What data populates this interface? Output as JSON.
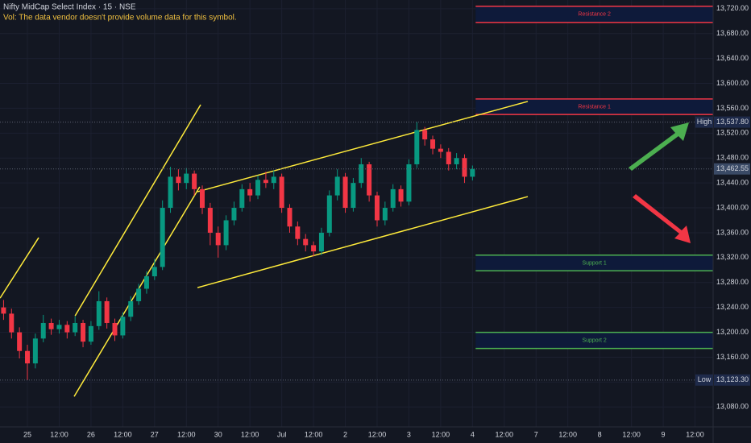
{
  "chart_data": {
    "type": "candlestick",
    "title": "Nifty MidCap Select Index · 15 · NSE",
    "subtitle": "Vol: The data vendor doesn't provide volume data for this symbol.",
    "up_color": "#089981",
    "down_color": "#f23645",
    "grid": true,
    "xlim": [
      -0.862,
      21.57
    ],
    "ylim": [
      13048,
      13734
    ],
    "xticks": [
      {
        "value": 0,
        "label": "25"
      },
      {
        "value": 1,
        "label": "12:00"
      },
      {
        "value": 2,
        "label": "26"
      },
      {
        "value": 3,
        "label": "12:00"
      },
      {
        "value": 4,
        "label": "27"
      },
      {
        "value": 5,
        "label": "12:00"
      },
      {
        "value": 6,
        "label": "30"
      },
      {
        "value": 7,
        "label": "12:00"
      },
      {
        "value": 8,
        "label": "Jul"
      },
      {
        "value": 9,
        "label": "12:00"
      },
      {
        "value": 10,
        "label": "2"
      },
      {
        "value": 11,
        "label": "12:00"
      },
      {
        "value": 12,
        "label": "3"
      },
      {
        "value": 13,
        "label": "12:00"
      },
      {
        "value": 14,
        "label": "4"
      },
      {
        "value": 15,
        "label": "12:00"
      },
      {
        "value": 16,
        "label": "7"
      },
      {
        "value": 17,
        "label": "12:00"
      },
      {
        "value": 18,
        "label": "8"
      },
      {
        "value": 19,
        "label": "12:00"
      },
      {
        "value": 20,
        "label": "9"
      },
      {
        "value": 21,
        "label": "12:00"
      }
    ],
    "yticks": [
      {
        "value": 13080,
        "label": "13,080.00"
      },
      {
        "value": 13120,
        "label": "13,120.00"
      },
      {
        "value": 13160,
        "label": "13,160.00"
      },
      {
        "value": 13200,
        "label": "13,200.00"
      },
      {
        "value": 13240,
        "label": "13,240.00"
      },
      {
        "value": 13280,
        "label": "13,280.00"
      },
      {
        "value": 13320,
        "label": "13,320.00"
      },
      {
        "value": 13360,
        "label": "13,360.00"
      },
      {
        "value": 13400,
        "label": "13,400.00"
      },
      {
        "value": 13440,
        "label": "13,440.00"
      },
      {
        "value": 13480,
        "label": "13,480.00"
      },
      {
        "value": 13520,
        "label": "13,520.00"
      },
      {
        "value": 13560,
        "label": "13,560.00"
      },
      {
        "value": 13600,
        "label": "13,600.00"
      },
      {
        "value": 13640,
        "label": "13,640.00"
      },
      {
        "value": 13680,
        "label": "13,680.00"
      },
      {
        "value": 13720,
        "label": "13,720.00"
      }
    ],
    "x": [
      -0.75,
      -0.5,
      -0.25,
      0,
      0.25,
      0.5,
      0.75,
      1,
      1.25,
      1.5,
      1.75,
      2,
      2.25,
      2.5,
      2.75,
      3,
      3.25,
      3.5,
      3.75,
      4,
      4.25,
      4.5,
      4.75,
      5,
      5.25,
      5.5,
      5.75,
      6,
      6.25,
      6.5,
      6.75,
      7,
      7.25,
      7.5,
      7.75,
      8,
      8.25,
      8.5,
      8.75,
      9,
      9.25,
      9.5,
      9.75,
      10,
      10.25,
      10.5,
      10.75,
      11,
      11.25,
      11.5,
      11.75,
      12,
      12.25,
      12.5,
      12.75,
      13,
      13.25,
      13.5,
      13.75,
      14
    ],
    "open": [
      13240,
      13230,
      13200,
      13170,
      13150,
      13190,
      13215,
      13205,
      13212,
      13200,
      13215,
      13185,
      13210,
      13250,
      13215,
      13195,
      13225,
      13250,
      13270,
      13290,
      13305,
      13400,
      13450,
      13440,
      13455,
      13430,
      13400,
      13360,
      13340,
      13380,
      13400,
      13430,
      13420,
      13445,
      13440,
      13450,
      13400,
      13370,
      13350,
      13340,
      13330,
      13360,
      13420,
      13450,
      13400,
      13440,
      13470,
      13420,
      13380,
      13400,
      13430,
      13410,
      13470,
      13525,
      13510,
      13495,
      13490,
      13470,
      13480,
      13450
    ],
    "high": [
      13252,
      13238,
      13208,
      13180,
      13198,
      13228,
      13222,
      13220,
      13218,
      13226,
      13220,
      13218,
      13266,
      13256,
      13222,
      13232,
      13258,
      13278,
      13298,
      13318,
      13412,
      13466,
      13462,
      13464,
      13460,
      13436,
      13408,
      13370,
      13388,
      13410,
      13438,
      13440,
      13452,
      13458,
      13460,
      13455,
      13406,
      13378,
      13358,
      13346,
      13368,
      13428,
      13462,
      13456,
      13448,
      13480,
      13474,
      13426,
      13410,
      13438,
      13436,
      13478,
      13537.8,
      13530,
      13516,
      13502,
      13496,
      13488,
      13486,
      13468
    ],
    "low": [
      13220,
      13190,
      13158,
      13123.3,
      13142,
      13184,
      13196,
      13198,
      13190,
      13194,
      13176,
      13180,
      13204,
      13206,
      13186,
      13190,
      13218,
      13244,
      13262,
      13284,
      13300,
      13392,
      13428,
      13430,
      13420,
      13390,
      13340,
      13320,
      13332,
      13372,
      13394,
      13410,
      13414,
      13432,
      13430,
      13392,
      13360,
      13340,
      13330,
      13322,
      13324,
      13354,
      13412,
      13392,
      13394,
      13432,
      13410,
      13370,
      13372,
      13394,
      13402,
      13404,
      13464,
      13500,
      13486,
      13480,
      13460,
      13462,
      13440,
      13444
    ],
    "close": [
      13230,
      13200,
      13170,
      13150,
      13190,
      13215,
      13205,
      13212,
      13200,
      13215,
      13185,
      13210,
      13250,
      13215,
      13195,
      13225,
      13250,
      13270,
      13290,
      13305,
      13400,
      13450,
      13440,
      13455,
      13430,
      13400,
      13360,
      13340,
      13380,
      13400,
      13430,
      13420,
      13445,
      13440,
      13450,
      13400,
      13370,
      13350,
      13340,
      13330,
      13360,
      13420,
      13450,
      13400,
      13440,
      13470,
      13420,
      13380,
      13400,
      13430,
      13410,
      13470,
      13525,
      13510,
      13495,
      13490,
      13470,
      13480,
      13450,
      13462.55
    ],
    "zones": [
      {
        "label": "Resistance 2",
        "top": 13724,
        "bottom": 13698,
        "x0": 14.1,
        "color": "#f23645"
      },
      {
        "label": "Resistance 1",
        "top": 13575,
        "bottom": 13550,
        "x0": 14.1,
        "color": "#f23645"
      },
      {
        "label": "Support 1",
        "top": 13324,
        "bottom": 13299,
        "x0": 14.1,
        "color": "#4caf50"
      },
      {
        "label": "Support 2",
        "top": 13200,
        "bottom": 13174,
        "x0": 14.1,
        "color": "#4caf50"
      }
    ],
    "trendline_color": "#ffeb3b",
    "trendlines": [
      {
        "x": [
          -0.86,
          0.355
        ],
        "y": [
          13254.9,
          13352.1
        ]
      },
      {
        "x": [
          1.47,
          5.42
        ],
        "y": [
          13096.9,
          13433.7
        ]
      },
      {
        "x": [
          1.5,
          5.45
        ],
        "y": [
          13226.4,
          13565.8
        ]
      },
      {
        "x": [
          5.35,
          15.74
        ],
        "y": [
          13425.9,
          13571
        ]
      },
      {
        "x": [
          5.35,
          15.74
        ],
        "y": [
          13271.8,
          13418.1
        ]
      }
    ],
    "price_markers": [
      {
        "label": "High",
        "value": 13537.8,
        "value_label": "13,537.80",
        "color": "#1e2a4a"
      },
      {
        "value": 13462.55,
        "value_label": "13,462.55",
        "color": "#3a4a66"
      },
      {
        "label": "Low",
        "value": 13123.3,
        "value_label": "13,123.30",
        "color": "#1e2a4a"
      }
    ]
  }
}
